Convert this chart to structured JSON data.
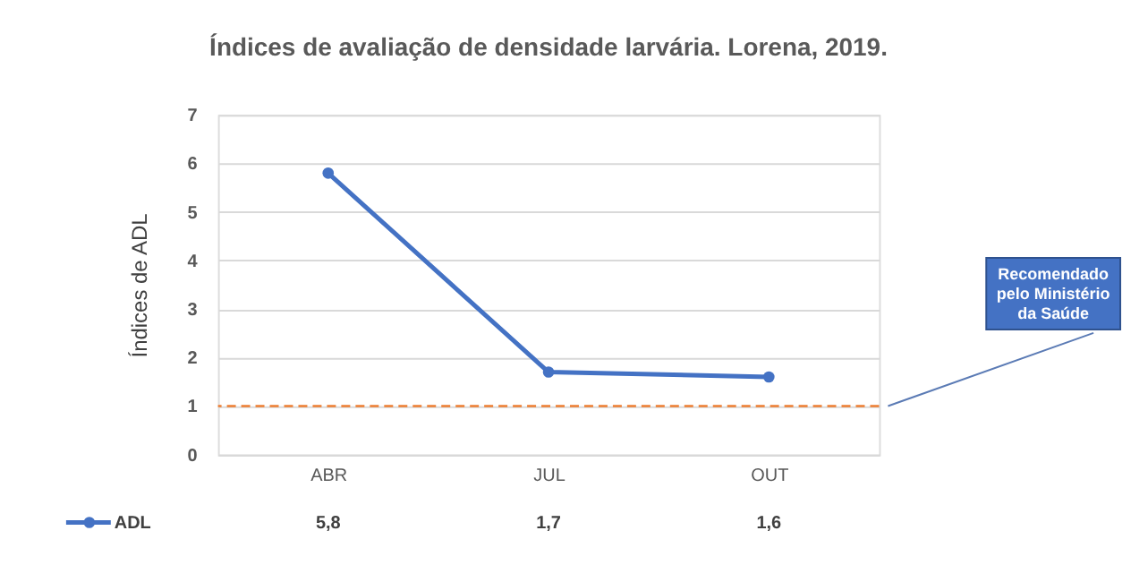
{
  "chart_data": {
    "type": "line",
    "title": "Índices de avaliação de densidade larvária. Lorena, 2019.",
    "ylabel": "Índices de ADL",
    "categories": [
      "ABR",
      "JUL",
      "OUT"
    ],
    "series": [
      {
        "name": "ADL",
        "color": "#4472c4",
        "values": [
          5.8,
          1.7,
          1.6
        ],
        "value_labels": [
          "5,8",
          "1,7",
          "1,6"
        ]
      }
    ],
    "ylim": [
      0,
      7
    ],
    "yticks": [
      0,
      1,
      2,
      3,
      4,
      5,
      6,
      7
    ],
    "grid": "y",
    "legend": "bottom left",
    "marker": "circle",
    "line_style": "solid",
    "ref_lines": [
      {
        "axis": "y",
        "value": 1,
        "label": "Recomendado pelo Ministério da Saúde",
        "color": "#ed7d31",
        "line_style": "dashed"
      }
    ]
  }
}
